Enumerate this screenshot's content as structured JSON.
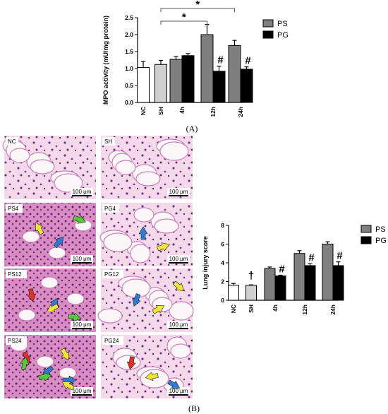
{
  "figure": {
    "label_a": "(A)",
    "label_b": "(B)"
  },
  "colors": {
    "ps": "#7f7f7f",
    "pg": "#000000",
    "nc": "#ffffff",
    "sh": "#cfcfcf",
    "tissue_pink": "#e8a6cf",
    "tissue_purple": "#7a2f86",
    "arrow_yellow": "#f2e43a",
    "arrow_blue": "#2f7bd0",
    "arrow_green": "#57c83c",
    "arrow_red": "#e0302a"
  },
  "chart_data": [
    {
      "id": "mpo",
      "type": "bar",
      "ylabel": "MPO activity (mU/mg protein)",
      "xlabel": "",
      "ylim": [
        0,
        2.5
      ],
      "yticks": [
        "0.0",
        "0.5",
        "1.0",
        "1.5",
        "2.0",
        "2.5"
      ],
      "legend_position": "top-right",
      "categories": [
        "NC",
        "SH",
        "4h",
        "12h",
        "24h"
      ],
      "controls": [
        {
          "name": "NC",
          "value": 1.03,
          "error": 0.18
        },
        {
          "name": "SH",
          "value": 1.12,
          "error": 0.12
        }
      ],
      "series": [
        {
          "name": "PS",
          "values": [
            null,
            null,
            1.27,
            2.0,
            1.68
          ],
          "errors": [
            null,
            null,
            0.08,
            0.3,
            0.15
          ]
        },
        {
          "name": "PG",
          "values": [
            null,
            null,
            1.38,
            0.92,
            0.98
          ],
          "errors": [
            null,
            null,
            0.06,
            0.15,
            0.07
          ]
        }
      ],
      "markers": {
        "hash": "#",
        "star": "*"
      },
      "significance": [
        {
          "from": "SH",
          "to": "12h",
          "label": "*"
        },
        {
          "from": "SH",
          "to": "24h",
          "label": "*"
        }
      ],
      "hash_on": [
        "12h",
        "24h"
      ]
    },
    {
      "id": "lung-injury",
      "type": "bar",
      "ylabel": "Lung injury score",
      "xlabel": "",
      "ylim": [
        0,
        8
      ],
      "yticks": [
        "0",
        "2",
        "4",
        "6",
        "8"
      ],
      "legend_position": "top-right",
      "categories": [
        "NC",
        "SH",
        "4h",
        "12h",
        "24h"
      ],
      "controls": [
        {
          "name": "NC",
          "value": 1.6,
          "error": 0.2
        },
        {
          "name": "SH",
          "value": 1.6,
          "error": 0.05
        }
      ],
      "series": [
        {
          "name": "PS",
          "values": [
            null,
            null,
            3.4,
            5.0,
            6.0
          ],
          "errors": [
            null,
            null,
            0.15,
            0.3,
            0.25
          ]
        },
        {
          "name": "PG",
          "values": [
            null,
            null,
            2.6,
            3.7,
            3.7
          ],
          "errors": [
            null,
            null,
            0.08,
            0.2,
            0.4
          ]
        }
      ],
      "markers": {
        "hash": "#",
        "dagger": "†"
      },
      "hash_on": [
        "4h",
        "12h",
        "24h"
      ],
      "dagger_on": [
        "SH"
      ]
    }
  ],
  "histology": {
    "panels": [
      {
        "label": "NC",
        "scale": "100 μm",
        "arrows": []
      },
      {
        "label": "SH",
        "scale": "100 μm",
        "arrows": []
      },
      {
        "label": "PS4",
        "scale": "100 μm",
        "arrows": [
          "yellow",
          "blue",
          "green"
        ]
      },
      {
        "label": "PG4",
        "scale": "100 μm",
        "arrows": [
          "blue",
          "yellow"
        ]
      },
      {
        "label": "PS12",
        "scale": "100 μm",
        "arrows": [
          "blue",
          "green",
          "red",
          "yellow"
        ]
      },
      {
        "label": "PG12",
        "scale": "100 μm",
        "arrows": [
          "yellow",
          "yellow",
          "blue"
        ]
      },
      {
        "label": "PS24",
        "scale": "100 μm",
        "arrows": [
          "blue",
          "red",
          "blue",
          "yellow",
          "green",
          "green",
          "yellow"
        ]
      },
      {
        "label": "PG24",
        "scale": "100 μm",
        "arrows": [
          "blue",
          "red",
          "yellow"
        ]
      }
    ]
  }
}
